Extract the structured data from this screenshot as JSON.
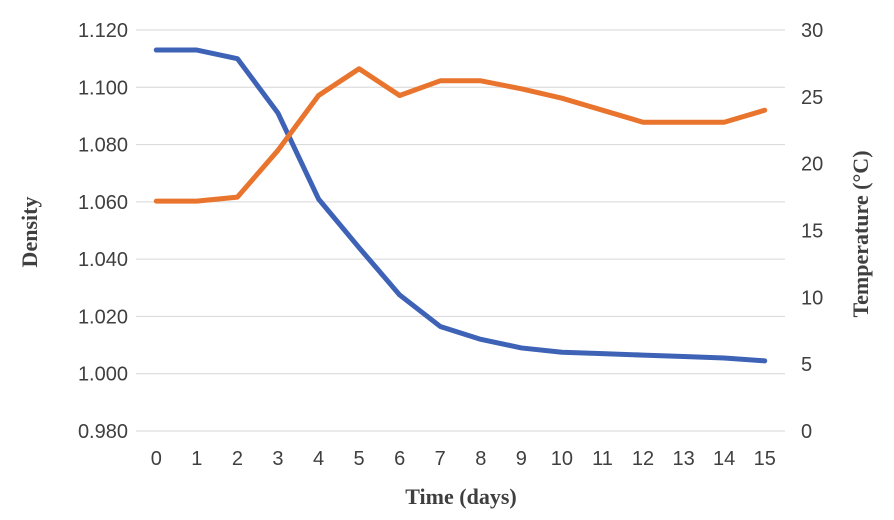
{
  "chart_data": {
    "type": "line",
    "x": [
      0,
      1,
      2,
      3,
      4,
      5,
      6,
      7,
      8,
      9,
      10,
      11,
      12,
      13,
      14,
      15
    ],
    "x_tick_labels": [
      "0",
      "1",
      "2",
      "3",
      "4",
      "5",
      "6",
      "7",
      "8",
      "9",
      "10",
      "11",
      "12",
      "13",
      "14",
      "15"
    ],
    "xlabel": "Time (days)",
    "grid": "horizontal",
    "legend": "none",
    "left_axis": {
      "title": "Density",
      "min": 0.98,
      "max": 1.12,
      "step": 0.02,
      "tick_labels": [
        "1.120",
        "1.100",
        "1.080",
        "1.060",
        "1.040",
        "1.020",
        "1.000",
        "0.980"
      ]
    },
    "right_axis": {
      "title": "Temperature (°C)",
      "min": 0,
      "max": 30,
      "step": 5,
      "tick_labels": [
        "30",
        "25",
        "20",
        "15",
        "10",
        "5",
        "0"
      ]
    },
    "series": [
      {
        "name": "Density",
        "axis": "left",
        "color": "#3E63B6",
        "values": [
          1.113,
          1.113,
          1.11,
          1.091,
          1.061,
          1.044,
          1.0275,
          1.0165,
          1.012,
          1.009,
          1.0075,
          1.007,
          1.0065,
          1.006,
          1.0055,
          1.0045
        ]
      },
      {
        "name": "Temperature",
        "axis": "right",
        "color": "#E9742E",
        "values": [
          17.2,
          17.2,
          17.5,
          21.0,
          25.1,
          27.1,
          25.1,
          26.2,
          26.2,
          25.6,
          24.9,
          24.0,
          23.1,
          23.1,
          23.1,
          24.0
        ]
      }
    ],
    "colors": {
      "gridline": "#D6D6D6",
      "tick_text": "#3F3F3F",
      "background": "#FFFFFF"
    }
  }
}
